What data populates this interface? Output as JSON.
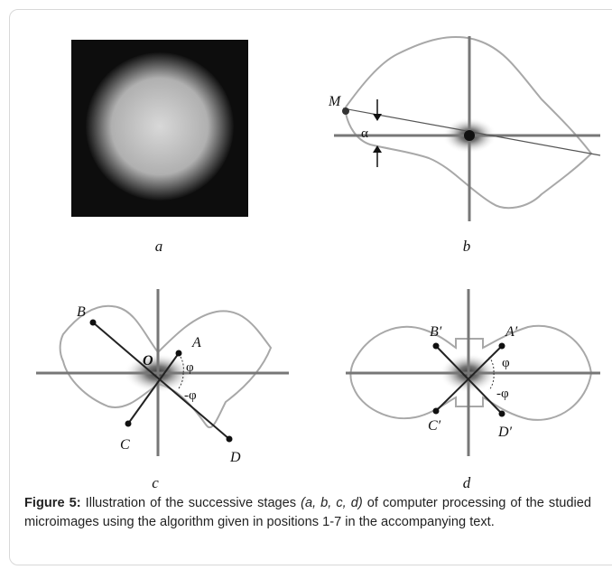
{
  "panels": [
    {
      "label": "a"
    },
    {
      "label": "b",
      "annotations": [
        "M",
        "α"
      ]
    },
    {
      "label": "c",
      "annotations": [
        "B",
        "A",
        "O",
        "φ",
        "-φ",
        "C",
        "D"
      ]
    },
    {
      "label": "d",
      "annotations": [
        "B′",
        "A′",
        "C′",
        "D′",
        "φ",
        "-φ"
      ]
    }
  ],
  "caption": {
    "label": "Figure 5:",
    "text": "Illustration of the successive stages",
    "italic": "(a, b, c, d)",
    "rest": "of computer processing of the studied microimages using the algorithm given in positions 1-7 in the accompanying text."
  }
}
